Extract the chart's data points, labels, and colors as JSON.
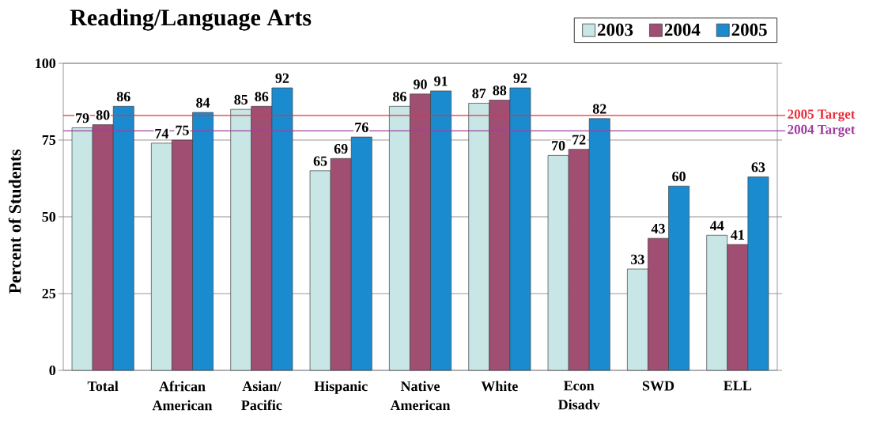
{
  "chart_data": {
    "type": "bar",
    "title": "Reading/Language Arts",
    "ylabel": "Percent of Students",
    "categories": [
      "Total",
      "African American",
      "Asian/ Pacific",
      "Hispanic",
      "Native American",
      "White",
      "Econ Disadv",
      "SWD",
      "ELL"
    ],
    "series": [
      {
        "name": "2003",
        "color": "#c8e6e6",
        "values": [
          79,
          74,
          85,
          65,
          86,
          87,
          70,
          33,
          44
        ]
      },
      {
        "name": "2004",
        "color": "#a04f73",
        "values": [
          80,
          75,
          86,
          69,
          90,
          88,
          72,
          43,
          41
        ]
      },
      {
        "name": "2005",
        "color": "#1b8bd0",
        "values": [
          86,
          84,
          92,
          76,
          91,
          92,
          82,
          60,
          63
        ]
      }
    ],
    "ylim": [
      0,
      100
    ],
    "yticks": [
      0,
      25,
      50,
      75,
      100
    ],
    "grid": "y",
    "legend": "top right",
    "data_labels": true,
    "ref_lines": [
      {
        "axis": "y",
        "value": 83,
        "label": "2005 Target",
        "color": "#e8303a"
      },
      {
        "axis": "y",
        "value": 78,
        "label": "2004 Target",
        "color": "#a03ca0"
      }
    ]
  }
}
